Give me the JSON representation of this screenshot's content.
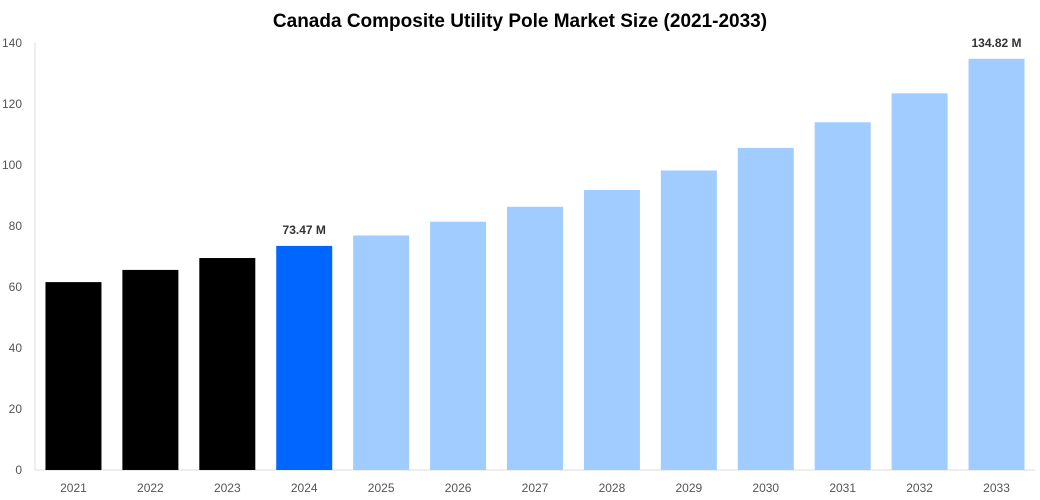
{
  "chart_data": {
    "type": "bar",
    "title": "Canada Composite Utility Pole Market Size (2021-2033)",
    "xlabel": "",
    "ylabel": "",
    "categories": [
      "2021",
      "2022",
      "2023",
      "2024",
      "2025",
      "2026",
      "2027",
      "2028",
      "2029",
      "2030",
      "2031",
      "2032",
      "2033"
    ],
    "values": [
      61.6,
      65.6,
      69.5,
      73.47,
      76.9,
      81.4,
      86.3,
      91.8,
      98.2,
      105.6,
      114.0,
      123.5,
      134.82
    ],
    "data_labels": {
      "3": "73.47 M",
      "12": "134.82 M"
    },
    "bar_colors": [
      "#000000",
      "#000000",
      "#000000",
      "#0066ff",
      "#a0ccff",
      "#a0ccff",
      "#a0ccff",
      "#a0ccff",
      "#a0ccff",
      "#a0ccff",
      "#a0ccff",
      "#a0ccff",
      "#a0ccff"
    ],
    "ylim": [
      0,
      140
    ],
    "yticks": [
      0,
      20,
      40,
      60,
      80,
      100,
      120,
      140
    ],
    "grid": false,
    "legend": "none"
  }
}
